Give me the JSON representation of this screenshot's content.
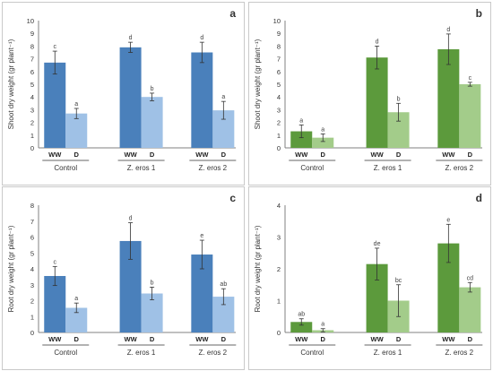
{
  "chart_data": [
    {
      "type": "bar",
      "panel_label": "a",
      "ylabel": "Shoot dry weight (gr plant⁻¹)",
      "ylim": [
        0,
        10
      ],
      "yticks": [
        0,
        1,
        2,
        3,
        4,
        5,
        6,
        7,
        8,
        9,
        10
      ],
      "categories": [
        "Control",
        "Z. eros 1",
        "Z. eros 2"
      ],
      "subcategories": [
        "WW",
        "D"
      ],
      "series": [
        {
          "name": "WW",
          "color": "#4a80bb",
          "values": [
            6.7,
            7.9,
            7.5
          ],
          "errors": [
            0.9,
            0.4,
            0.8
          ],
          "letters": [
            "c",
            "d",
            "d"
          ]
        },
        {
          "name": "D",
          "color": "#9fc1e6",
          "values": [
            2.7,
            4.0,
            2.95
          ],
          "errors": [
            0.4,
            0.3,
            0.7
          ],
          "letters": [
            "a",
            "b",
            "a"
          ]
        }
      ]
    },
    {
      "type": "bar",
      "panel_label": "b",
      "ylabel": "Shoot dry weight (gr plant⁻¹)",
      "ylim": [
        0,
        10
      ],
      "yticks": [
        0,
        1,
        2,
        3,
        4,
        5,
        6,
        7,
        8,
        9,
        10
      ],
      "categories": [
        "Control",
        "Z. eros 1",
        "Z. eros 2"
      ],
      "subcategories": [
        "WW",
        "D"
      ],
      "series": [
        {
          "name": "WW",
          "color": "#5c9a3c",
          "values": [
            1.3,
            7.1,
            7.75
          ],
          "errors": [
            0.5,
            0.9,
            1.2
          ],
          "letters": [
            "a",
            "d",
            "d"
          ]
        },
        {
          "name": "D",
          "color": "#a3cc8a",
          "values": [
            0.8,
            2.8,
            5.0
          ],
          "errors": [
            0.3,
            0.7,
            0.15
          ],
          "letters": [
            "a",
            "b",
            "c"
          ]
        }
      ]
    },
    {
      "type": "bar",
      "panel_label": "c",
      "ylabel": "Root dry weight (gr plant⁻¹)",
      "ylim": [
        0,
        8
      ],
      "yticks": [
        0,
        1,
        2,
        3,
        4,
        5,
        6,
        7,
        8
      ],
      "categories": [
        "Control",
        "Z. eros 1",
        "Z. eros 2"
      ],
      "subcategories": [
        "WW",
        "D"
      ],
      "series": [
        {
          "name": "WW",
          "color": "#4a80bb",
          "values": [
            3.55,
            5.75,
            4.9
          ],
          "errors": [
            0.6,
            1.15,
            0.9
          ],
          "letters": [
            "c",
            "d",
            "e"
          ]
        },
        {
          "name": "D",
          "color": "#9fc1e6",
          "values": [
            1.55,
            2.45,
            2.25
          ],
          "errors": [
            0.3,
            0.4,
            0.5
          ],
          "letters": [
            "a",
            "b",
            "ab"
          ]
        }
      ]
    },
    {
      "type": "bar",
      "panel_label": "d",
      "ylabel": "Root dry weight (gr plant⁻¹)",
      "ylim": [
        0,
        4
      ],
      "yticks": [
        0,
        1,
        2,
        3,
        4
      ],
      "categories": [
        "Control",
        "Z. eros 1",
        "Z. eros 2"
      ],
      "subcategories": [
        "WW",
        "D"
      ],
      "series": [
        {
          "name": "WW",
          "color": "#5c9a3c",
          "values": [
            0.33,
            2.15,
            2.8
          ],
          "errors": [
            0.1,
            0.5,
            0.6
          ],
          "letters": [
            "ab",
            "de",
            "e"
          ]
        },
        {
          "name": "D",
          "color": "#a3cc8a",
          "values": [
            0.07,
            1.0,
            1.42
          ],
          "errors": [
            0.05,
            0.5,
            0.15
          ],
          "letters": [
            "a",
            "bc",
            "cd"
          ]
        }
      ]
    }
  ]
}
